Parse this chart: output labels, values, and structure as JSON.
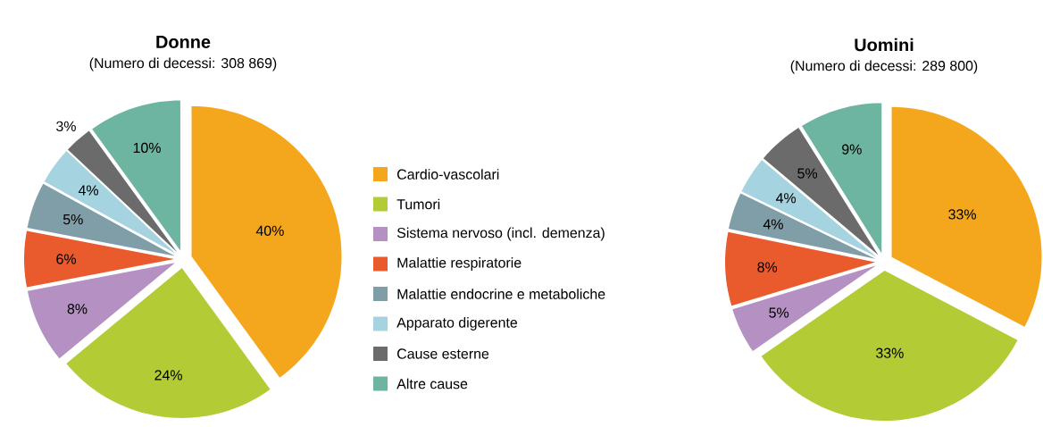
{
  "chart_data": [
    {
      "type": "pie",
      "title": "Donne",
      "subtitle": "(Numero di decessi: 308 869)",
      "categories": [
        "Cardio-vascolari",
        "Tumori",
        "Sistema nervoso (incl. demenza)",
        "Malattie respiratorie",
        "Malattie endocrine e metaboliche",
        "Apparato digerente",
        "Cause esterne",
        "Altre cause"
      ],
      "values": [
        40,
        24,
        8,
        6,
        5,
        4,
        3,
        10
      ],
      "colors": [
        "#f4a71d",
        "#b3cb35",
        "#b591c3",
        "#e95a2c",
        "#7f9ea8",
        "#a6d3e0",
        "#6b6b6b",
        "#6db5a1"
      ],
      "value_labels": [
        "40%",
        "24%",
        "8%",
        "6%",
        "5%",
        "4%",
        "3%",
        "10%"
      ],
      "legend": "right"
    },
    {
      "type": "pie",
      "title": "Uomini",
      "subtitle": "(Numero di decessi: 289 800)",
      "values": [
        33,
        33,
        5,
        8,
        4,
        4,
        5,
        9
      ],
      "colors": [
        "#f4a71d",
        "#b3cb35",
        "#b591c3",
        "#e95a2c",
        "#7f9ea8",
        "#a6d3e0",
        "#6b6b6b",
        "#6db5a1"
      ],
      "value_labels": [
        "33%",
        "33%",
        "5%",
        "8%",
        "4%",
        "4%",
        "5%",
        "9%"
      ]
    }
  ]
}
